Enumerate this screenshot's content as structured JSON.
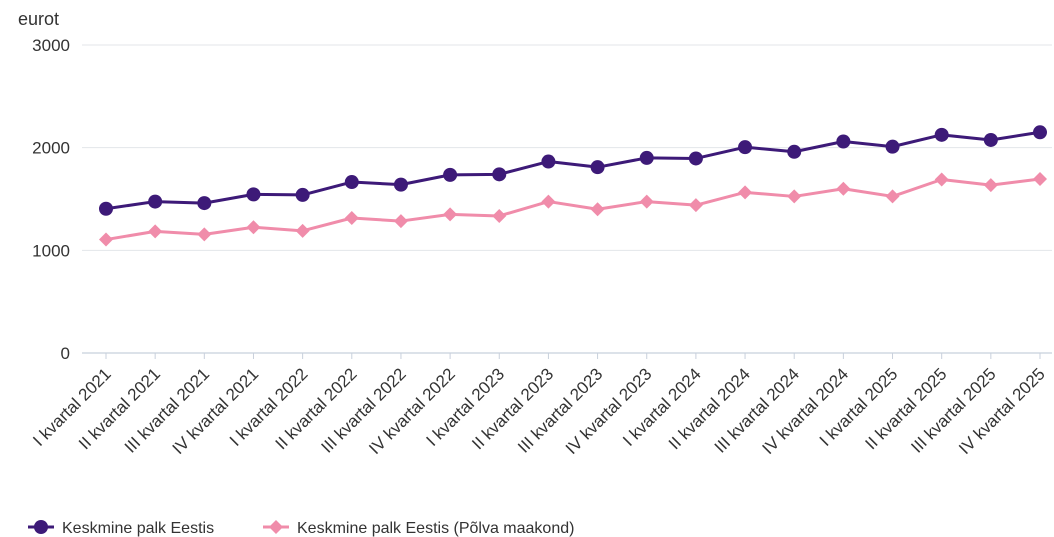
{
  "chart_data": {
    "type": "line",
    "ylabel": "eurot",
    "ylim": [
      0,
      3000
    ],
    "yticks": [
      "0",
      "1000",
      "2000",
      "3000"
    ],
    "grid": true,
    "legend_position": "bottom-left",
    "categories": [
      "I kvartal 2021",
      "II kvartal 2021",
      "III kvartal 2021",
      "IV kvartal 2021",
      "I kvartal 2022",
      "II kvartal 2022",
      "III kvartal 2022",
      "IV kvartal 2022",
      "I kvartal 2023",
      "II kvartal 2023",
      "III kvartal 2023",
      "IV kvartal 2023",
      "I kvartal 2024",
      "II kvartal 2024",
      "III kvartal 2024",
      "IV kvartal 2024",
      "I kvartal 2025",
      "II kvartal 2025",
      "III kvartal 2025",
      "IV kvartal 2025"
    ],
    "series": [
      {
        "name": "Keskmine palk Eestis",
        "color": "#3d1a78",
        "marker": "circle",
        "values": [
          1405,
          1475,
          1460,
          1545,
          1540,
          1665,
          1640,
          1735,
          1740,
          1865,
          1810,
          1900,
          1895,
          2005,
          1960,
          2060,
          2010,
          2125,
          2075,
          2150
        ]
      },
      {
        "name": "Keskmine palk Eestis (Põlva maakond)",
        "color": "#f08caa",
        "marker": "diamond",
        "values": [
          1105,
          1185,
          1155,
          1225,
          1190,
          1315,
          1285,
          1350,
          1335,
          1475,
          1400,
          1475,
          1440,
          1565,
          1525,
          1600,
          1525,
          1690,
          1635,
          1695
        ]
      }
    ]
  }
}
